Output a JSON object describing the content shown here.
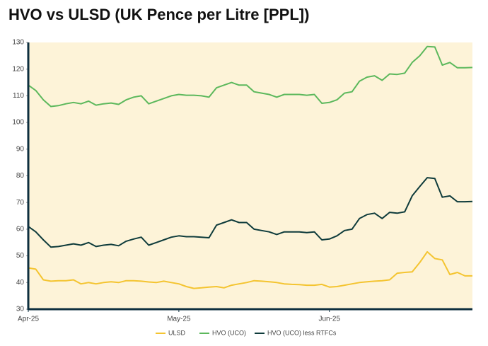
{
  "chart_data": {
    "type": "line",
    "title": "HVO vs ULSD (UK Pence per Litre [PPL])",
    "categories": [
      "Apr-25",
      null,
      null,
      null,
      null,
      null,
      null,
      null,
      null,
      null,
      null,
      null,
      null,
      null,
      null,
      null,
      null,
      null,
      null,
      null,
      "May-25",
      null,
      null,
      null,
      null,
      null,
      null,
      null,
      null,
      null,
      null,
      null,
      null,
      null,
      null,
      null,
      null,
      null,
      null,
      null,
      "Jun-25",
      null,
      null,
      null,
      null,
      null,
      null,
      null,
      null,
      null,
      null,
      null,
      null,
      null,
      null,
      null,
      null,
      null,
      null,
      null
    ],
    "series": [
      {
        "name": "ULSD",
        "color": "#f4c430",
        "values": [
          45.5,
          45,
          41,
          40.5,
          40.7,
          40.7,
          41,
          39.5,
          40,
          39.5,
          40,
          40.3,
          40,
          40.7,
          40.7,
          40.5,
          40.2,
          40,
          40.5,
          40,
          39.5,
          38.5,
          37.8,
          38,
          38.3,
          38.5,
          38,
          39,
          39.5,
          40,
          40.7,
          40.5,
          40.3,
          40,
          39.5,
          39.3,
          39.2,
          39,
          39,
          39.3,
          38.3,
          38.5,
          39,
          39.5,
          40,
          40.3,
          40.5,
          40.7,
          41,
          43.5,
          43.8,
          44,
          47.5,
          51.5,
          49,
          48.5,
          43,
          43.8,
          42.5,
          42.5
        ]
      },
      {
        "name": "HVO (UCO)",
        "color": "#5cb85c",
        "values": [
          114,
          112,
          108.5,
          106,
          106.3,
          107,
          107.5,
          107,
          108,
          106.5,
          107,
          107.3,
          106.8,
          108.5,
          109.5,
          110,
          107,
          108,
          109,
          110,
          110.5,
          110.2,
          110.2,
          110,
          109.5,
          113,
          114,
          115,
          114,
          114,
          111.5,
          111,
          110.5,
          109.5,
          110.5,
          110.5,
          110.5,
          110.2,
          110.5,
          107.2,
          107.5,
          108.5,
          111,
          111.5,
          115.5,
          117,
          117.5,
          115.8,
          118.2,
          118,
          118.5,
          122.5,
          125,
          128.5,
          128.3,
          121.5,
          122.5,
          120.5,
          120.5,
          120.6
        ]
      },
      {
        "name": "HVO (UCO) less RTFCs",
        "color": "#0e3b3b",
        "values": [
          61,
          59,
          56,
          53.3,
          53.5,
          54,
          54.5,
          54,
          55,
          53.5,
          54,
          54.3,
          53.8,
          55.5,
          56.3,
          57,
          54,
          55,
          56,
          57,
          57.5,
          57.2,
          57.2,
          57,
          56.8,
          61.5,
          62.5,
          63.5,
          62.5,
          62.5,
          60,
          59.5,
          59,
          58,
          59,
          59,
          59,
          58.7,
          59,
          56,
          56.3,
          57.5,
          59.5,
          60,
          64,
          65.5,
          66,
          64,
          66.3,
          66,
          66.5,
          72.5,
          76,
          79.3,
          79,
          72,
          72.5,
          70.3,
          70.3,
          70.4
        ]
      }
    ],
    "ylim": [
      30,
      130
    ],
    "yticks": [
      30,
      40,
      50,
      60,
      70,
      80,
      90,
      100,
      110,
      120,
      130
    ],
    "grid": false,
    "legend": "bottom"
  }
}
